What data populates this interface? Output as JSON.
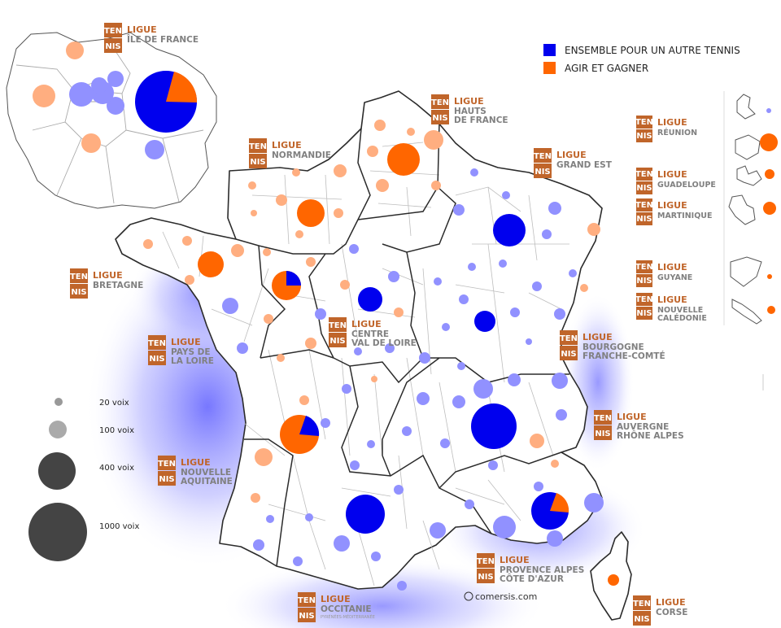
{
  "legend": {
    "blue_label": "ENSEMBLE POUR UN AUTRE TENNIS",
    "orange_label": "AGIR ET GAGNER",
    "blue_color": "#0000ee",
    "orange_color": "#ff6600"
  },
  "sizes": [
    "20 voix",
    "100 voix",
    "400 voix",
    "1000 voix"
  ],
  "badge": {
    "top": "TEN",
    "bottom": "NIS"
  },
  "credit": "comersis.com",
  "regions": [
    {
      "name": "ligue-ile-de-france",
      "title": "LIGUE",
      "lines": [
        "ÎLE DE FRANCE"
      ]
    },
    {
      "name": "ligue-hauts-de-france",
      "title": "LIGUE",
      "lines": [
        "HAUTS",
        "DE FRANCE"
      ]
    },
    {
      "name": "ligue-normandie",
      "title": "LIGUE",
      "lines": [
        "NORMANDIE"
      ]
    },
    {
      "name": "ligue-grand-est",
      "title": "LIGUE",
      "lines": [
        "GRAND EST"
      ]
    },
    {
      "name": "ligue-bretagne",
      "title": "LIGUE",
      "lines": [
        "BRETAGNE"
      ]
    },
    {
      "name": "ligue-centre-val-de-loire",
      "title": "LIGUE",
      "lines": [
        "CENTRE",
        "VAL DE LOIRE"
      ]
    },
    {
      "name": "ligue-pays-de-la-loire",
      "title": "LIGUE",
      "lines": [
        "PAYS DE",
        "LA LOIRE"
      ]
    },
    {
      "name": "ligue-bourgogne-franche-comte",
      "title": "LIGUE",
      "lines": [
        "BOURGOGNE",
        "FRANCHE-COMTÉ"
      ]
    },
    {
      "name": "ligue-auvergne-rhone-alpes",
      "title": "LIGUE",
      "lines": [
        "AUVERGNE",
        "RHÔNE ALPES"
      ]
    },
    {
      "name": "ligue-nouvelle-aquitaine",
      "title": "LIGUE",
      "lines": [
        "NOUVELLE",
        "AQUITAINE"
      ]
    },
    {
      "name": "ligue-provence-alpes-cote-d-azur",
      "title": "LIGUE",
      "lines": [
        "PROVENCE ALPES",
        "CÔTE D'AZUR"
      ]
    },
    {
      "name": "ligue-occitanie",
      "title": "LIGUE",
      "lines": [
        "OCCITANIE"
      ],
      "tiny": "PYRÉNÉES-MÉDITERRANÉE"
    },
    {
      "name": "ligue-corse",
      "title": "LIGUE",
      "lines": [
        "CORSE"
      ]
    },
    {
      "name": "ligue-reunion",
      "title": "LIGUE",
      "lines": [
        "RÉUNION"
      ]
    },
    {
      "name": "ligue-guadeloupe",
      "title": "LIGUE",
      "lines": [
        "GUADELOUPE"
      ]
    },
    {
      "name": "ligue-martinique",
      "title": "LIGUE",
      "lines": [
        "MARTINIQUE"
      ]
    },
    {
      "name": "ligue-guyane",
      "title": "LIGUE",
      "lines": [
        "GUYANE"
      ]
    },
    {
      "name": "ligue-nouvelle-caledonie",
      "title": "LIGUE",
      "lines": [
        "NOUVELLE",
        "CALÉDONIE"
      ]
    }
  ]
}
